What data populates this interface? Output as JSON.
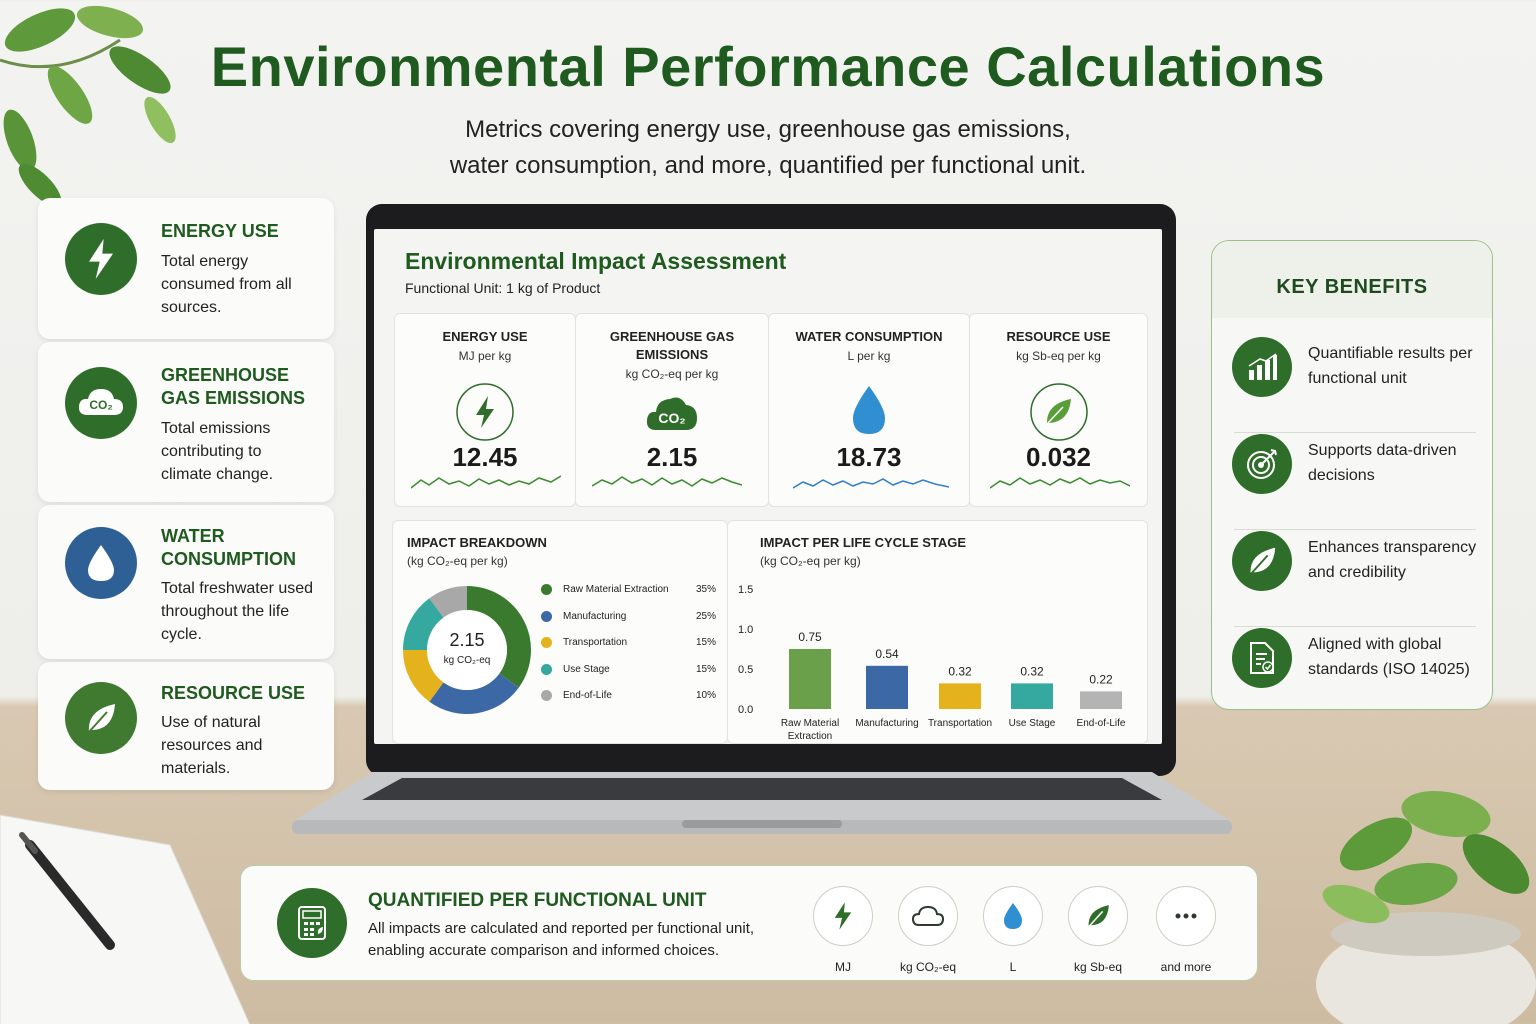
{
  "header": {
    "title": "Environmental Performance Calculations",
    "subtitle_line1": "Metrics covering energy use, greenhouse gas emissions,",
    "subtitle_line2": "water consumption, and more, quantified per functional unit."
  },
  "left_cards": [
    {
      "title": "ENERGY USE",
      "desc": "Total energy consumed from all sources.",
      "icon": "lightning-icon",
      "color": "#2f6d2a"
    },
    {
      "title": "GREENHOUSE GAS EMISSIONS",
      "desc": "Total emissions contributing to climate change.",
      "icon": "co2-cloud-icon",
      "icon_text": "CO₂",
      "color": "#2f6d2a"
    },
    {
      "title": "WATER CONSUMPTION",
      "desc": "Total freshwater used throughout the life cycle.",
      "icon": "water-drop-icon",
      "color": "#2e5f95"
    },
    {
      "title": "RESOURCE USE",
      "desc": "Use of natural resources and materials.",
      "icon": "leaf-icon",
      "color": "#3f7a30"
    }
  ],
  "dashboard": {
    "title": "Environmental Impact Assessment",
    "functional_unit": "Functional Unit: 1 kg of Product",
    "metrics": [
      {
        "title": "ENERGY USE",
        "unit": "MJ per kg",
        "value": "12.45",
        "icon": "lightning-icon"
      },
      {
        "title": "GREENHOUSE GAS EMISSIONS",
        "unit": "kg CO₂-eq per kg",
        "value": "2.15",
        "icon": "co2-cloud-icon",
        "icon_text": "CO₂"
      },
      {
        "title": "WATER CONSUMPTION",
        "unit": "L per kg",
        "value": "18.73",
        "icon": "water-drop-icon"
      },
      {
        "title": "RESOURCE USE",
        "unit": "kg Sb-eq per kg",
        "value": "0.032",
        "icon": "leaf-icon"
      }
    ],
    "breakdown": {
      "title": "IMPACT BREAKDOWN",
      "unit": "(kg CO₂-eq per kg)",
      "center_value": "2.15",
      "center_unit": "kg CO₂-eq"
    },
    "stages": {
      "title": "IMPACT PER LIFE CYCLE STAGE",
      "unit": "(kg CO₂-eq per kg)"
    }
  },
  "chart_data": [
    {
      "type": "pie",
      "categories": [
        "Raw Material Extraction",
        "Manufacturing",
        "Transportation",
        "Use Stage",
        "End-of-Life"
      ],
      "values": [
        35,
        25,
        15,
        15,
        10
      ],
      "labels": [
        "35%",
        "25%",
        "15%",
        "15%",
        "10%"
      ],
      "colors": [
        "#3a7a2e",
        "#3c69a6",
        "#e3b21c",
        "#35a8a0",
        "#a8a8a8"
      ]
    },
    {
      "type": "bar",
      "categories": [
        "Raw Material Extraction",
        "Manufacturing",
        "Transportation",
        "Use Stage",
        "End-of-Life"
      ],
      "values": [
        0.75,
        0.54,
        0.32,
        0.32,
        0.22
      ],
      "value_labels": [
        "0.75",
        "0.54",
        "0.32",
        "0.32",
        "0.22"
      ],
      "colors": [
        "#6aa04a",
        "#3c69a6",
        "#e3b21c",
        "#35a8a0",
        "#b4b4b4"
      ],
      "ylim": [
        0,
        1.5
      ],
      "yticks": [
        "0.0",
        "0.5",
        "1.0",
        "1.5"
      ]
    }
  ],
  "benefits": {
    "title": "KEY BENEFITS",
    "items": [
      {
        "text": "Quantifiable results per functional unit",
        "icon": "bar-chart-icon"
      },
      {
        "text": "Supports data-driven decisions",
        "icon": "target-icon"
      },
      {
        "text": "Enhances transparency and credibility",
        "icon": "leaf-icon"
      },
      {
        "text": "Aligned with global standards (ISO 14025)",
        "icon": "document-check-icon"
      }
    ]
  },
  "banner": {
    "title": "QUANTIFIED PER FUNCTIONAL UNIT",
    "desc_line1": "All impacts are calculated and reported per functional unit,",
    "desc_line2": "enabling accurate comparison and informed choices.",
    "units": [
      {
        "label": "MJ",
        "icon": "lightning-icon"
      },
      {
        "label": "kg CO₂-eq",
        "icon": "cloud-icon"
      },
      {
        "label": "L",
        "icon": "water-drop-icon"
      },
      {
        "label": "kg Sb-eq",
        "icon": "leaf-icon"
      },
      {
        "label": "and more",
        "icon": "ellipsis-icon"
      }
    ]
  }
}
